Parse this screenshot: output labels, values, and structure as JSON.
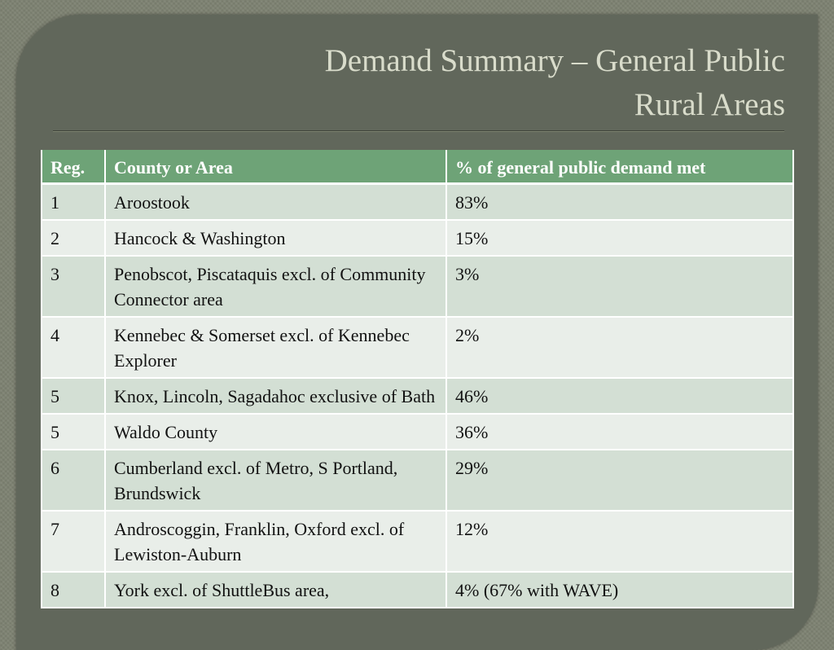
{
  "header": {
    "title_line1": "Demand Summary – General Public",
    "title_line2": "Rural Areas"
  },
  "table": {
    "columns": [
      "Reg.",
      "County or Area",
      "% of general public demand met"
    ],
    "rows": [
      [
        "1",
        "Aroostook",
        "83%"
      ],
      [
        "2",
        "Hancock & Washington",
        "15%"
      ],
      [
        "3",
        "Penobscot, Piscataquis excl. of Community Connector area",
        "3%"
      ],
      [
        "4",
        "Kennebec & Somerset excl. of Kennebec Explorer",
        "2%"
      ],
      [
        "5",
        "Knox, Lincoln, Sagadahoc exclusive of Bath",
        "46%"
      ],
      [
        "5",
        "Waldo County",
        "36%"
      ],
      [
        "6",
        "Cumberland excl. of Metro, S Portland, Brundswick",
        "29%"
      ],
      [
        "7",
        "Androscoggin, Franklin, Oxford excl. of Lewiston-Auburn",
        "12%"
      ],
      [
        "8",
        "York excl. of ShuttleBus area,",
        "4% (67% with WAVE)"
      ]
    ]
  }
}
